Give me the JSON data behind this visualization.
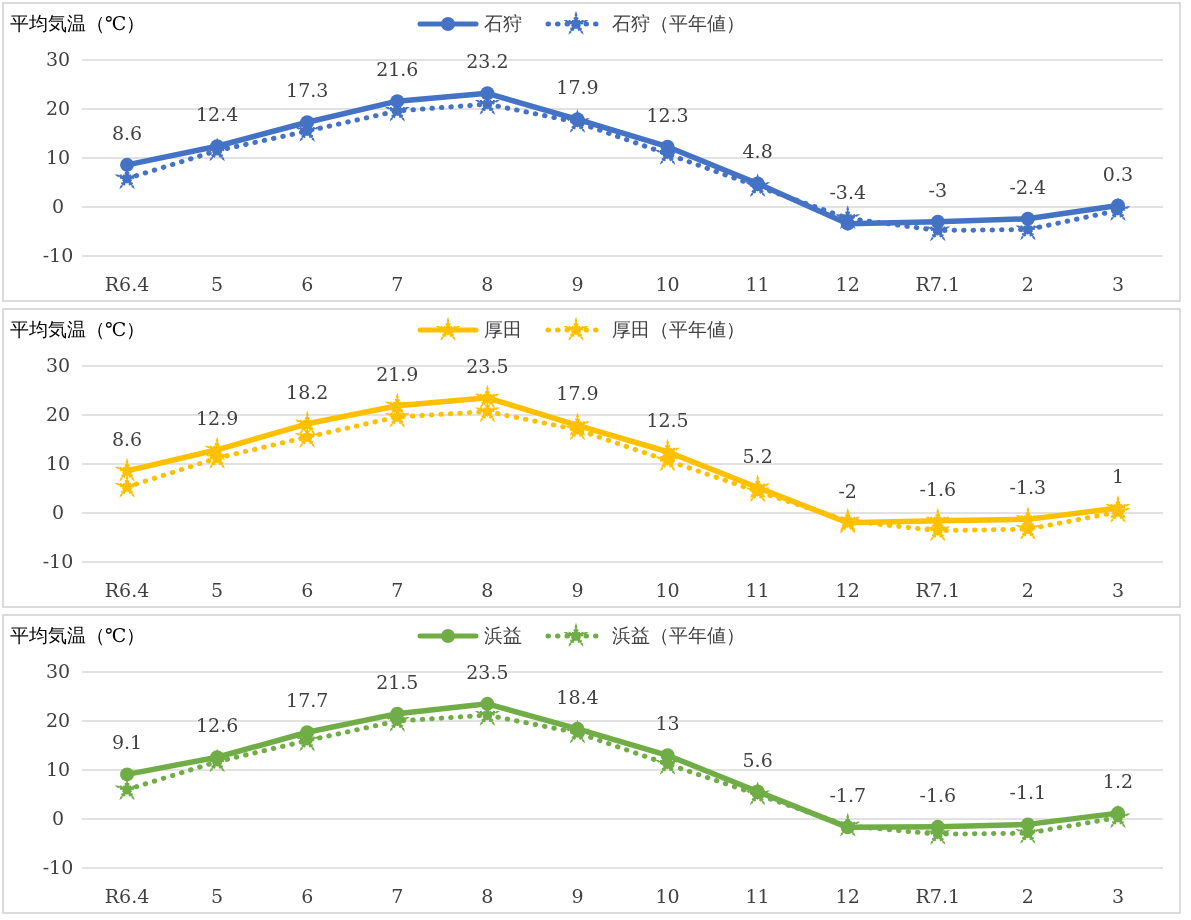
{
  "chart_data": [
    {
      "type": "line",
      "ylabel": "平均気温（℃）",
      "categories": [
        "R6.4",
        "5",
        "6",
        "7",
        "8",
        "9",
        "10",
        "11",
        "12",
        "R7.1",
        "2",
        "3"
      ],
      "ylim": [
        -10,
        30
      ],
      "yticks": [
        -10,
        0,
        10,
        20,
        30
      ],
      "grid": "y",
      "legend": "top",
      "series": [
        {
          "name": "石狩",
          "color": "#4472c4",
          "marker": "circle",
          "line_style": "solid",
          "values": [
            8.6,
            12.4,
            17.3,
            21.6,
            23.2,
            17.9,
            12.3,
            4.8,
            -3.4,
            -3,
            -2.4,
            0.3
          ],
          "value_labels": [
            "8.6",
            "12.4",
            "17.3",
            "21.6",
            "23.2",
            "17.9",
            "12.3",
            "4.8",
            "-3.4",
            "-3",
            "-2.4",
            "0.3"
          ]
        },
        {
          "name": "石狩（平年値）",
          "color": "#4472c4",
          "marker": "star",
          "line_style": "dotted",
          "values": [
            5.8,
            11.5,
            15.5,
            19.6,
            21,
            17.3,
            10.8,
            4.2,
            -2.3,
            -4.8,
            -4.6,
            -0.7
          ]
        }
      ]
    },
    {
      "type": "line",
      "ylabel": "平均気温（℃）",
      "categories": [
        "R6.4",
        "5",
        "6",
        "7",
        "8",
        "9",
        "10",
        "11",
        "12",
        "R7.1",
        "2",
        "3"
      ],
      "ylim": [
        -10,
        30
      ],
      "yticks": [
        -10,
        0,
        10,
        20,
        30
      ],
      "grid": "y",
      "legend": "top",
      "series": [
        {
          "name": "厚田",
          "color": "#ffc000",
          "marker": "star",
          "line_style": "solid",
          "values": [
            8.6,
            12.9,
            18.2,
            21.9,
            23.5,
            17.9,
            12.5,
            5.2,
            -2,
            -1.6,
            -1.3,
            1
          ],
          "value_labels": [
            "8.6",
            "12.9",
            "18.2",
            "21.9",
            "23.5",
            "17.9",
            "12.5",
            "5.2",
            "-2",
            "-1.6",
            "-1.3",
            "1"
          ]
        },
        {
          "name": "厚田（平年値）",
          "color": "#ffc000",
          "marker": "star",
          "line_style": "dotted",
          "values": [
            5.3,
            11.2,
            15.5,
            19.6,
            20.7,
            17,
            10.7,
            4.4,
            -1.6,
            -3.6,
            -3.3,
            0.2
          ]
        }
      ]
    },
    {
      "type": "line",
      "ylabel": "平均気温（℃）",
      "categories": [
        "R6.4",
        "5",
        "6",
        "7",
        "8",
        "9",
        "10",
        "11",
        "12",
        "R7.1",
        "2",
        "3"
      ],
      "ylim": [
        -10,
        30
      ],
      "yticks": [
        -10,
        0,
        10,
        20,
        30
      ],
      "grid": "y",
      "legend": "top",
      "series": [
        {
          "name": "浜益",
          "color": "#70ad47",
          "marker": "circle",
          "line_style": "solid",
          "values": [
            9.1,
            12.6,
            17.7,
            21.5,
            23.5,
            18.4,
            13,
            5.6,
            -1.7,
            -1.6,
            -1.1,
            1.2
          ],
          "value_labels": [
            "9.1",
            "12.6",
            "17.7",
            "21.5",
            "23.5",
            "18.4",
            "13",
            "5.6",
            "-1.7",
            "-1.6",
            "-1.1",
            "1.2"
          ]
        },
        {
          "name": "浜益（平年値）",
          "color": "#70ad47",
          "marker": "star",
          "line_style": "dotted",
          "values": [
            6,
            11.7,
            16,
            20,
            21.2,
            17.6,
            11.2,
            5,
            -1.4,
            -3.1,
            -2.9,
            0.3
          ]
        }
      ]
    }
  ]
}
